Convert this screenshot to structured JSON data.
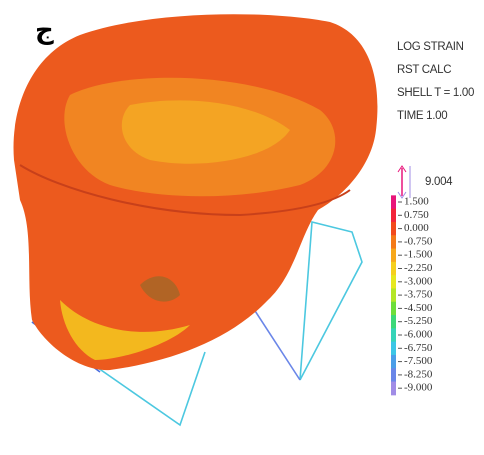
{
  "panel_label": "ج",
  "header": {
    "lines": [
      "LOG STRAIN",
      "RST CALC",
      "SHELL T = 1.00",
      "TIME 1.00"
    ],
    "scale_value": "9.004"
  },
  "legend": {
    "entries": [
      {
        "label": "1.500",
        "color": "#e8157a"
      },
      {
        "label": "0.750",
        "color": "#f2243a"
      },
      {
        "label": "0.000",
        "color": "#f24a1c"
      },
      {
        "label": "-0.750",
        "color": "#f47a18"
      },
      {
        "label": "-1.500",
        "color": "#f7a81c"
      },
      {
        "label": "-2.250",
        "color": "#f5cf1e"
      },
      {
        "label": "-3.000",
        "color": "#e6e820"
      },
      {
        "label": "-3.750",
        "color": "#b4e628"
      },
      {
        "label": "-4.500",
        "color": "#6ede3a"
      },
      {
        "label": "-5.250",
        "color": "#3cd878"
      },
      {
        "label": "-6.000",
        "color": "#36d4b8"
      },
      {
        "label": "-6.750",
        "color": "#3cc6e6"
      },
      {
        "label": "-7.500",
        "color": "#4a9ee8"
      },
      {
        "label": "-8.250",
        "color": "#6a86e8"
      },
      {
        "label": "-9.000",
        "color": "#a08ce6"
      }
    ]
  }
}
